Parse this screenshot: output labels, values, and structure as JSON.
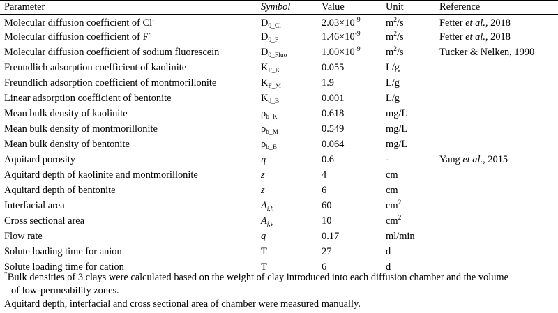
{
  "table": {
    "headers": {
      "parameter": "Parameter",
      "symbol": "Symbol",
      "value": "Value",
      "unit": "Unit",
      "reference": "Reference"
    },
    "rows": [
      {
        "parameter": "Molecular diffusion coefficient of Cl",
        "parameter_sup": "-",
        "symbol": "D",
        "symbol_sub": "0_Cl",
        "value": "2.03×10",
        "value_sup": "-9",
        "unit": "m",
        "unit_sup": "2",
        "unit_tail": "/s",
        "reference": "Fetter ",
        "reference_it": "et al.",
        "reference_tail": ", 2018"
      },
      {
        "parameter": "Molecular diffusion coefficient of F",
        "parameter_sup": "-",
        "symbol": "D",
        "symbol_sub": "0_F",
        "value": "1.46×10",
        "value_sup": "-9",
        "unit": "m",
        "unit_sup": "2",
        "unit_tail": "/s",
        "reference": "Fetter ",
        "reference_it": "et al.",
        "reference_tail": ", 2018"
      },
      {
        "parameter": "Molecular diffusion coefficient of sodium fluorescein",
        "parameter_sup": "",
        "symbol": "D",
        "symbol_sub": "0_Fluo",
        "value": "1.00×10",
        "value_sup": "-9",
        "unit": "m",
        "unit_sup": "2",
        "unit_tail": "/s",
        "reference": "Tucker & Nelken, 1990",
        "reference_it": "",
        "reference_tail": ""
      },
      {
        "parameter": "Freundlich adsorption coefficient of kaolinite",
        "parameter_sup": "",
        "symbol": "K",
        "symbol_sub": "F_K",
        "value": "0.055",
        "value_sup": "",
        "unit": "L/g",
        "unit_sup": "",
        "unit_tail": "",
        "reference": "",
        "reference_it": "",
        "reference_tail": ""
      },
      {
        "parameter": "Freundlich adsorption coefficient of montmorillonite",
        "parameter_sup": "",
        "symbol": "K",
        "symbol_sub": "F_M",
        "value": "1.9",
        "value_sup": "",
        "unit": "L/g",
        "unit_sup": "",
        "unit_tail": "",
        "reference": "",
        "reference_it": "",
        "reference_tail": ""
      },
      {
        "parameter": "Linear adsorption coefficient of bentonite",
        "parameter_sup": "",
        "symbol": "K",
        "symbol_sub": "d_B",
        "value": "0.001",
        "value_sup": "",
        "unit": "L/g",
        "unit_sup": "",
        "unit_tail": "",
        "reference": "",
        "reference_it": "",
        "reference_tail": ""
      },
      {
        "parameter": "Mean bulk density of kaolinite",
        "parameter_sup": "",
        "symbol": "ρ",
        "symbol_sub": "b_K",
        "value": "0.618",
        "value_sup": "",
        "unit": "mg/L",
        "unit_sup": "",
        "unit_tail": "",
        "reference": "",
        "reference_it": "",
        "reference_tail": ""
      },
      {
        "parameter": "Mean bulk density of montmorillonite",
        "parameter_sup": "",
        "symbol": "ρ",
        "symbol_sub": "b_M",
        "value": "0.549",
        "value_sup": "",
        "unit": "mg/L",
        "unit_sup": "",
        "unit_tail": "",
        "reference": "",
        "reference_it": "",
        "reference_tail": ""
      },
      {
        "parameter": "Mean bulk density of bentonite",
        "parameter_sup": "",
        "symbol": "ρ",
        "symbol_sub": "b_B",
        "value": "0.064",
        "value_sup": "",
        "unit": "mg/L",
        "unit_sup": "",
        "unit_tail": "",
        "reference": "",
        "reference_it": "",
        "reference_tail": ""
      },
      {
        "parameter": "Aquitard porosity",
        "parameter_sup": "",
        "symbol": "η",
        "symbol_italic": true,
        "symbol_sub": "",
        "value": "0.6",
        "value_sup": "",
        "unit": "-",
        "unit_sup": "",
        "unit_tail": "",
        "reference": "Yang ",
        "reference_it": "et al.",
        "reference_tail": ", 2015"
      },
      {
        "parameter": "Aquitard depth of kaolinite and montmorillonite",
        "parameter_sup": "",
        "symbol": "z",
        "symbol_italic": true,
        "symbol_sub": "",
        "value": "4",
        "value_sup": "",
        "unit": "cm",
        "unit_sup": "",
        "unit_tail": "",
        "reference": "",
        "reference_it": "",
        "reference_tail": ""
      },
      {
        "parameter": "Aquitard depth of bentonite",
        "parameter_sup": "",
        "symbol": "z",
        "symbol_italic": true,
        "symbol_sub": "",
        "value": "6",
        "value_sup": "",
        "unit": "cm",
        "unit_sup": "",
        "unit_tail": "",
        "reference": "",
        "reference_it": "",
        "reference_tail": ""
      },
      {
        "parameter": "Interfacial area",
        "parameter_sup": "",
        "symbol": "A",
        "symbol_italic": true,
        "symbol_sub": "i,h",
        "value": "60",
        "value_sup": "",
        "unit": "cm",
        "unit_sup": "2",
        "unit_tail": "",
        "reference": "",
        "reference_it": "",
        "reference_tail": ""
      },
      {
        "parameter": "Cross sectional area",
        "parameter_sup": "",
        "symbol": "A",
        "symbol_italic": true,
        "symbol_sub": "j,v",
        "value": "10",
        "value_sup": "",
        "unit": "cm",
        "unit_sup": "2",
        "unit_tail": "",
        "reference": "",
        "reference_it": "",
        "reference_tail": ""
      },
      {
        "parameter": "Flow rate",
        "parameter_sup": "",
        "symbol": "q",
        "symbol_italic": true,
        "symbol_sub": "",
        "value": "0.17",
        "value_sup": "",
        "unit": "ml/min",
        "unit_sup": "",
        "unit_tail": "",
        "reference": "",
        "reference_it": "",
        "reference_tail": ""
      },
      {
        "parameter": "Solute loading time for anion",
        "parameter_sup": "",
        "symbol": "T",
        "symbol_sub": "",
        "value": "27",
        "value_sup": "",
        "unit": "d",
        "unit_sup": "",
        "unit_tail": "",
        "reference": "",
        "reference_it": "",
        "reference_tail": ""
      },
      {
        "parameter": "Solute loading time for cation",
        "parameter_sup": "",
        "symbol": "T",
        "symbol_sub": "",
        "value": "6",
        "value_sup": "",
        "unit": "d",
        "unit_sup": "",
        "unit_tail": "",
        "reference": "",
        "reference_it": "",
        "reference_tail": ""
      }
    ]
  },
  "notes": {
    "footnote_mark": "*",
    "note1": "Bulk densities of 3 clays were calculated based on the weight of clay introduced into each diffusion chamber and the volume",
    "note1_cont": "of low-permeability zones.",
    "note2": "Aquitard depth, interfacial and cross sectional area of chamber were measured manually."
  }
}
